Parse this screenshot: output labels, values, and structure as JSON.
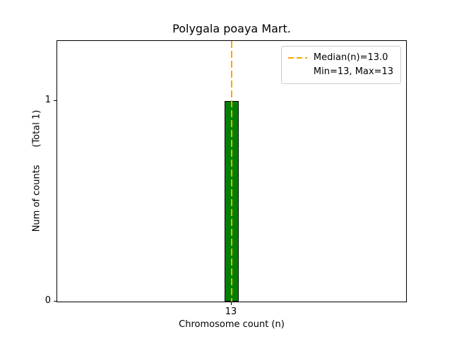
{
  "chart_data": {
    "type": "bar",
    "title": "Polygala poaya Mart.",
    "xlabel": "Chromosome count (n)",
    "ylabel": "Num of counts      (Total 1)",
    "categories": [
      13
    ],
    "values": [
      1
    ],
    "xlim": [
      12,
      14
    ],
    "ylim": [
      0,
      1.3
    ],
    "xticks": [
      13
    ],
    "yticks": [
      0,
      1
    ],
    "bar_width_data": 0.08,
    "bar_color": "#008000",
    "bar_edge_color": "#000000",
    "median_line": {
      "x": 13,
      "color": "#FFA500",
      "style": "dashed"
    },
    "grid": false,
    "legend": {
      "position": "upper right",
      "entries": [
        {
          "handle": "dashed-line",
          "label": "Median(n)=13.0"
        },
        {
          "handle": "none",
          "label": "Min=13, Max=13"
        }
      ]
    }
  }
}
